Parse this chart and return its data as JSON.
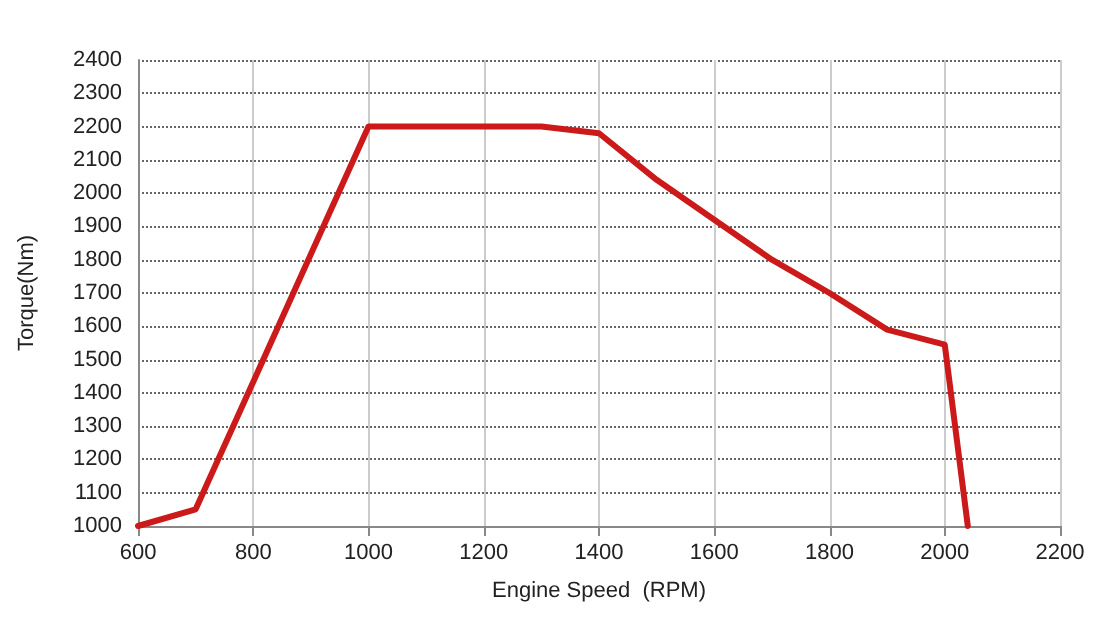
{
  "chart_data": {
    "type": "line",
    "xlabel": "Engine Speed  (RPM)",
    "ylabel": "Torque(Nm)",
    "x": [
      600,
      700,
      1000,
      1300,
      1400,
      1500,
      1600,
      1700,
      1800,
      1900,
      2000,
      2040
    ],
    "series": [
      {
        "color": "#cc1a1a",
        "values": [
          1000,
          1050,
          2200,
          2200,
          2180,
          2040,
          1920,
          1800,
          1700,
          1590,
          1545,
          1000
        ]
      }
    ],
    "xlim": [
      600,
      2200
    ],
    "xticks": [
      600,
      800,
      1000,
      1200,
      1400,
      1600,
      1800,
      2000,
      2200
    ],
    "ylim": [
      1000,
      2400
    ],
    "yticks": [
      1000,
      1100,
      1200,
      1300,
      1400,
      1500,
      1600,
      1700,
      1800,
      1900,
      2000,
      2100,
      2200,
      2300,
      2400
    ],
    "grid": true,
    "marker": "none",
    "line_style": "solid"
  }
}
